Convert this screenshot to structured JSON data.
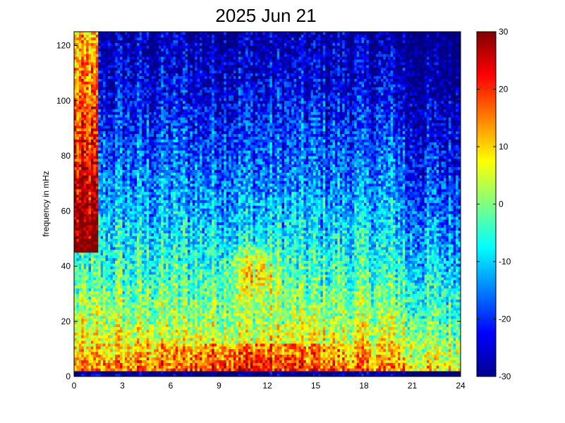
{
  "chart_data": {
    "type": "heatmap",
    "title": "2025 Jun 21",
    "xlabel": "",
    "ylabel": "frequency in mHz",
    "xlim": [
      0,
      24
    ],
    "ylim": [
      0,
      125
    ],
    "x_ticks": [
      "0",
      "3",
      "6",
      "9",
      "12",
      "15",
      "18",
      "21",
      "24"
    ],
    "y_ticks": [
      "0",
      "20",
      "40",
      "60",
      "80",
      "100",
      "120"
    ],
    "colorbar": {
      "colormap": "jet",
      "clim": [
        -30,
        30
      ],
      "ticks": [
        "-30",
        "-20",
        "-10",
        "0",
        "10",
        "20",
        "30"
      ]
    },
    "features": [
      {
        "region": "0–1.5 h, 50–125 mHz",
        "level_db": 30
      },
      {
        "region": "0–24 h, 0–2 mHz",
        "level_db": -30
      },
      {
        "region": "4–18 h, 2–12 mHz",
        "level_db": 20
      },
      {
        "region": "9.5–13 h, 30–45 mHz",
        "level_db": 18
      },
      {
        "region": "0–24 h, 12–40 mHz",
        "level_db": 5
      },
      {
        "region": "0–24 h, 60–120 mHz",
        "level_db": -20
      },
      {
        "region": "20–24 h, 80–125 mHz",
        "level_db": -25
      }
    ]
  }
}
